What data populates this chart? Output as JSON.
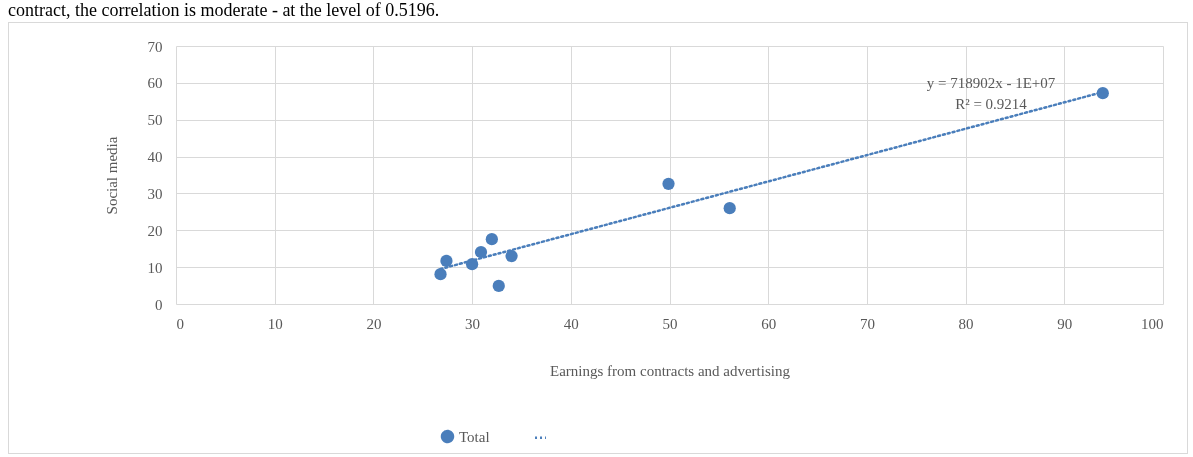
{
  "chart_data": {
    "type": "scatter",
    "xlabel": "Earnings from contracts and advertising",
    "ylabel": "Social media",
    "series": [
      {
        "name": "Total",
        "marker": "circle",
        "color": "#4a7ebb",
        "x": [
          26.8,
          27.4,
          30.0,
          30.9,
          32.0,
          32.7,
          34.0,
          49.9,
          56.1,
          93.9
        ],
        "values": [
          8.1,
          11.7,
          10.8,
          14.1,
          17.6,
          4.9,
          13.0,
          32.6,
          26.0,
          57.2
        ]
      },
      {
        "type": "line",
        "color": "#4a7ebb",
        "line_style": "dotted",
        "x": [
          26.8,
          93.9
        ],
        "values": [
          9.5,
          57.5
        ]
      }
    ],
    "xlim": [
      0,
      100
    ],
    "xticks": [
      0,
      10,
      20,
      30,
      40,
      50,
      60,
      70,
      80,
      90,
      100
    ],
    "ylim": [
      0,
      70
    ],
    "yticks": [
      0,
      10,
      20,
      30,
      40,
      50,
      60,
      70
    ],
    "grid": true,
    "legend": "bottom",
    "annotations": [
      "y = 718902x - 1E+07",
      "R² = 0.9214",
      "contract, the correlation is moderate - at the level of 0.5196."
    ]
  }
}
